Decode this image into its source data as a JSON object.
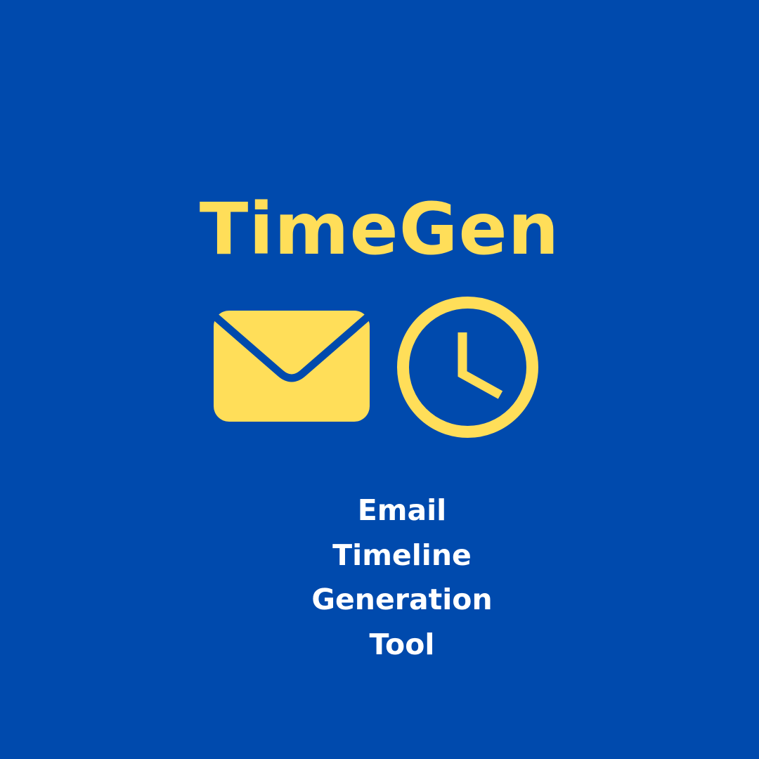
{
  "title": "TimeGen",
  "icons": [
    "envelope-icon",
    "clock-icon"
  ],
  "subtitle_lines": [
    "Email",
    "Timeline",
    "Generation",
    "Tool"
  ],
  "colors": {
    "background": "#004aad",
    "accent": "#ffde59",
    "subtitle": "#ffffff"
  }
}
